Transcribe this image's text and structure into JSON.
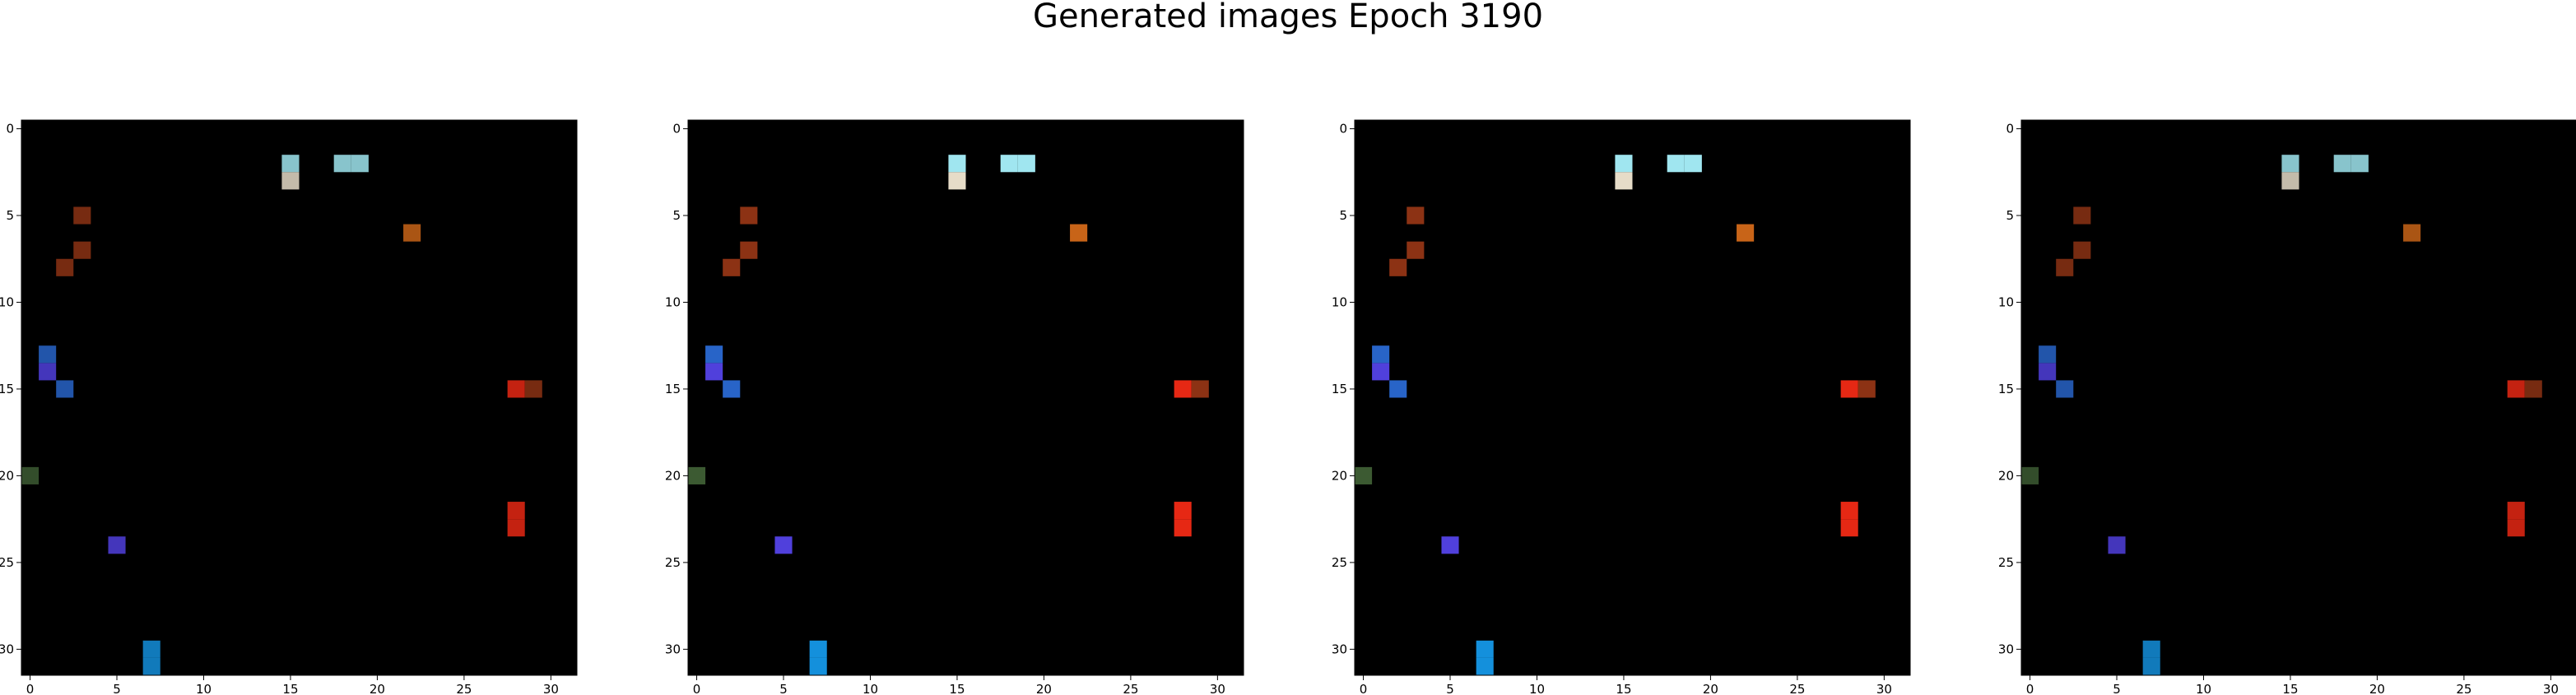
{
  "title": "Generated images Epoch 3190",
  "grid_size": 32,
  "x_ticks": [
    "0",
    "5",
    "10",
    "15",
    "20",
    "25",
    "30"
  ],
  "y_ticks": [
    "0",
    "5",
    "10",
    "15",
    "20",
    "25",
    "30"
  ],
  "panels": [
    {
      "name": "generated-image-1",
      "intensity": 0.55,
      "core": 0.25
    },
    {
      "name": "generated-image-2",
      "intensity": 0.95,
      "core": 1.0
    },
    {
      "name": "generated-image-3",
      "intensity": 1.0,
      "core": 1.15
    },
    {
      "name": "generated-image-4",
      "intensity": 0.6,
      "core": 0.3
    }
  ],
  "colors": {
    "background": "#000000",
    "yellow": "#e0a030",
    "orange": "#c86418",
    "cream": "#e6dcc8",
    "blue": "#2864c8",
    "teal": "#3c6e6e",
    "green": "#3c5a32",
    "red": "#e62814",
    "light_blue": "#a0e6f0",
    "purple": "#5040dc",
    "bright_blue": "#1490dc",
    "rust": "#8c3214"
  }
}
